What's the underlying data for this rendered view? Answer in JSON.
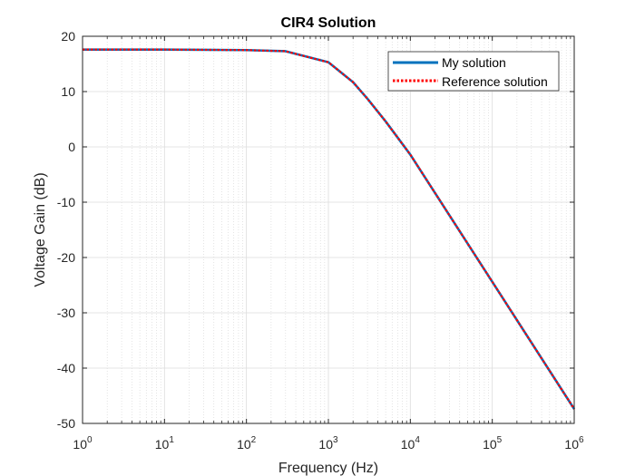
{
  "chart_data": {
    "type": "line",
    "title": "CIR4 Solution",
    "xlabel": "Frequency (Hz)",
    "ylabel": "Voltage Gain (dB)",
    "xscale": "log",
    "xlim": [
      1,
      1000000
    ],
    "ylim": [
      -50,
      20
    ],
    "x_ticks": [
      {
        "base": "10",
        "exp": "0"
      },
      {
        "base": "10",
        "exp": "1"
      },
      {
        "base": "10",
        "exp": "2"
      },
      {
        "base": "10",
        "exp": "3"
      },
      {
        "base": "10",
        "exp": "4"
      },
      {
        "base": "10",
        "exp": "5"
      },
      {
        "base": "10",
        "exp": "6"
      }
    ],
    "y_ticks": [
      "20",
      "10",
      "0",
      "-10",
      "-20",
      "-30",
      "-40",
      "-50"
    ],
    "grid": true,
    "minor_grid_x": true,
    "legend_position": "top-right",
    "x": [
      1,
      10,
      100,
      300,
      1000,
      2000,
      3000,
      5000,
      10000,
      100000,
      1000000
    ],
    "series": [
      {
        "name": "My solution",
        "color": "#0072BD",
        "style": "solid",
        "values": [
          17.6,
          17.6,
          17.5,
          17.3,
          15.3,
          11.7,
          8.7,
          4.6,
          -1.4,
          -24.4,
          -47.4
        ]
      },
      {
        "name": "Reference solution",
        "color": "#FF0000",
        "style": "dotted",
        "values": [
          17.6,
          17.6,
          17.5,
          17.3,
          15.3,
          11.7,
          8.7,
          4.6,
          -1.4,
          -24.4,
          -47.4
        ]
      }
    ]
  }
}
